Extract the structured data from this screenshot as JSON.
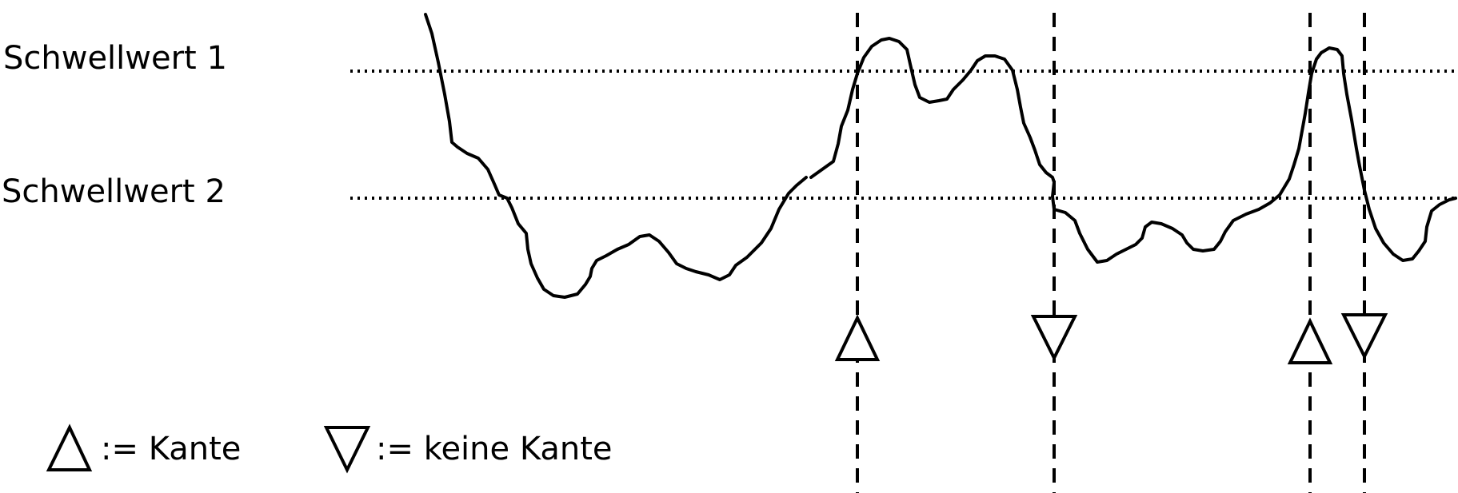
{
  "thresholds": {
    "threshold_1_label": "Schwellwert 1",
    "threshold_2_label": "Schwellwert 2"
  },
  "legend": {
    "rising_text": ":= Kante",
    "falling_text": ":= keine Kante",
    "rising_icon": "triangle-up-icon",
    "falling_icon": "triangle-down-icon"
  },
  "markers": [
    {
      "type": "edge",
      "icon": "triangle-up-icon"
    },
    {
      "type": "no-edge",
      "icon": "triangle-down-icon"
    },
    {
      "type": "edge",
      "icon": "triangle-up-icon"
    },
    {
      "type": "no-edge",
      "icon": "triangle-down-icon"
    }
  ],
  "colors": {
    "stroke": "#000000",
    "background": "#ffffff"
  }
}
